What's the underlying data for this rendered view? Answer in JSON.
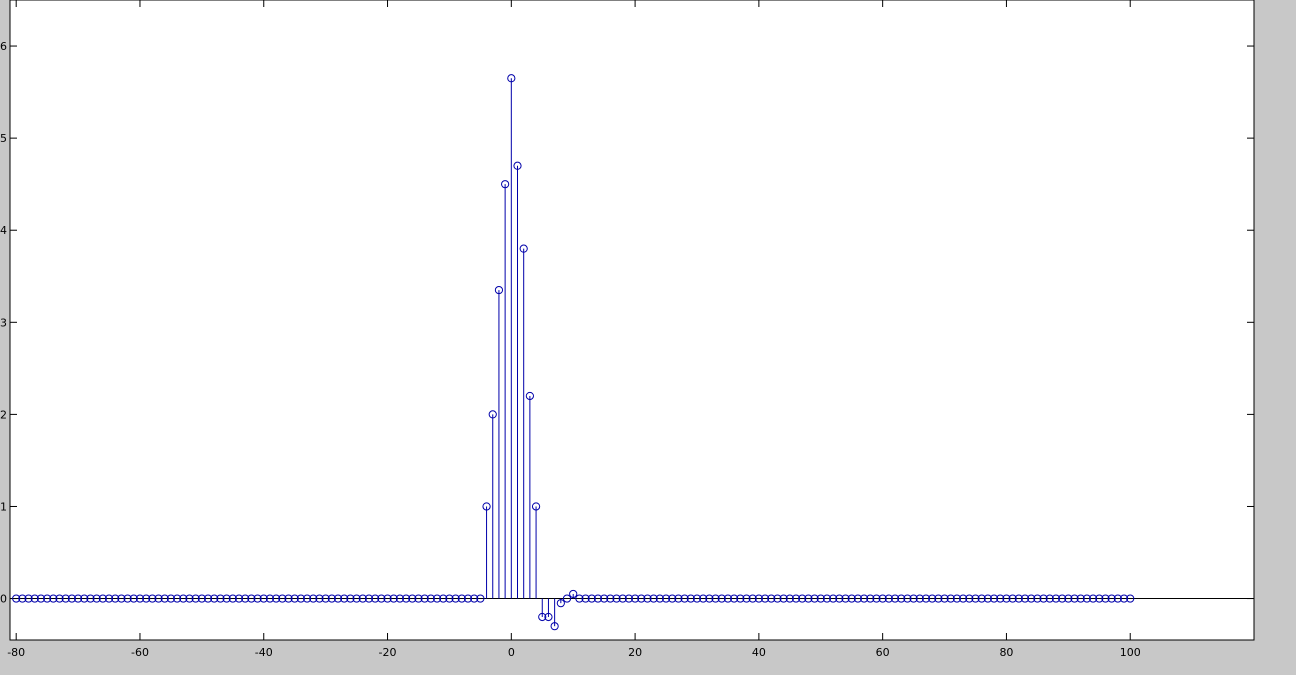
{
  "chart_data": {
    "type": "stem",
    "title": "",
    "xlabel": "",
    "ylabel": "",
    "xlim": [
      -81,
      120
    ],
    "ylim": [
      -0.45,
      6.5
    ],
    "xticks": [
      -80,
      -60,
      -40,
      -20,
      0,
      20,
      40,
      60,
      80,
      100
    ],
    "yticks": [
      0,
      1,
      2,
      3,
      4,
      5,
      6
    ],
    "baseline": 0,
    "grid": false,
    "legend": "none",
    "series": [
      {
        "marker": "circle",
        "color": "#0000aa",
        "x_start": -80,
        "x_end": 100,
        "default_value": 0,
        "nonzero_points": [
          {
            "x": -4,
            "y": 1.0
          },
          {
            "x": -3,
            "y": 2.0
          },
          {
            "x": -2,
            "y": 3.35
          },
          {
            "x": -1,
            "y": 4.5
          },
          {
            "x": 0,
            "y": 5.65
          },
          {
            "x": 1,
            "y": 4.7
          },
          {
            "x": 2,
            "y": 3.8
          },
          {
            "x": 3,
            "y": 2.2
          },
          {
            "x": 4,
            "y": 1.0
          },
          {
            "x": 5,
            "y": -0.2
          },
          {
            "x": 6,
            "y": -0.2
          },
          {
            "x": 7,
            "y": -0.3
          },
          {
            "x": 8,
            "y": -0.05
          },
          {
            "x": 9,
            "y": 0.0
          },
          {
            "x": 10,
            "y": 0.05
          }
        ]
      }
    ]
  }
}
